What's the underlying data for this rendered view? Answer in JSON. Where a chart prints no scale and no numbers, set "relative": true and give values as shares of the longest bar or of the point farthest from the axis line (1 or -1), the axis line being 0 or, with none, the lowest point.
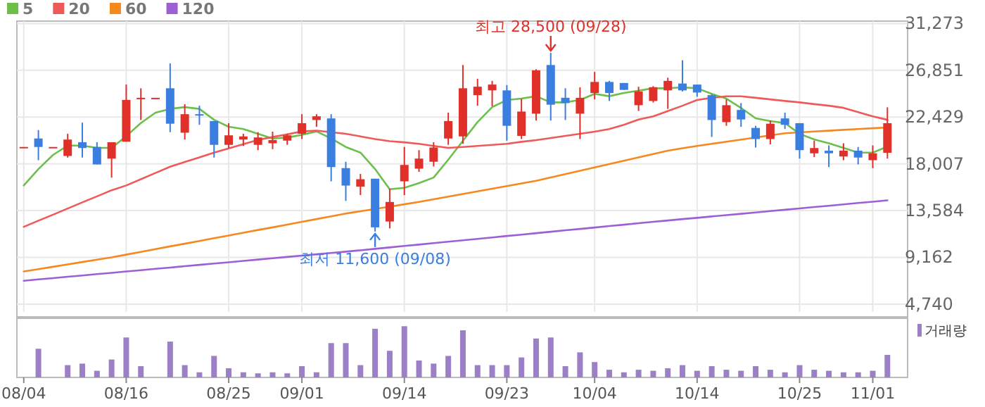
{
  "chart_data": [
    {
      "type": "candlestick",
      "categories": [
        null,
        null,
        null,
        null,
        null,
        null,
        null,
        null,
        null,
        null,
        null,
        null,
        null,
        null,
        null,
        null,
        null,
        null,
        null,
        null,
        null,
        null,
        null,
        null,
        null,
        null,
        null,
        null,
        null,
        null,
        null,
        null,
        null,
        null,
        null,
        null,
        null,
        null,
        null,
        null,
        null,
        null,
        null,
        null,
        null,
        null,
        null,
        null,
        null,
        null,
        null,
        null,
        null,
        null,
        null,
        null,
        null,
        null,
        null,
        null
      ],
      "ohlc": [
        [
          19600,
          19600,
          19600,
          19600
        ],
        [
          20400,
          21200,
          18350,
          19600
        ],
        [
          19600,
          19600,
          19600,
          19600
        ],
        [
          18750,
          20850,
          18600,
          20300
        ],
        [
          20050,
          21900,
          18600,
          19500
        ],
        [
          19600,
          20050,
          17950,
          17950
        ],
        [
          18500,
          20050,
          16700,
          20050
        ],
        [
          20100,
          25500,
          20100,
          24050
        ],
        [
          24250,
          25150,
          22150,
          24250
        ],
        [
          24250,
          24250,
          24250,
          24250
        ],
        [
          25150,
          27500,
          21000,
          21800
        ],
        [
          20950,
          23650,
          20300,
          22700
        ],
        [
          22700,
          23500,
          21700,
          22650
        ],
        [
          22050,
          22050,
          18600,
          19800
        ],
        [
          19800,
          21850,
          19500,
          20700
        ],
        [
          20300,
          20850,
          19700,
          20600
        ],
        [
          19800,
          21000,
          19300,
          20500
        ],
        [
          19950,
          21050,
          19400,
          20250
        ],
        [
          20200,
          20850,
          19800,
          20700
        ],
        [
          20850,
          22700,
          20350,
          21850
        ],
        [
          22150,
          22700,
          21500,
          22500
        ],
        [
          22300,
          22700,
          16350,
          17700
        ],
        [
          17600,
          18200,
          14500,
          15950
        ],
        [
          15850,
          17050,
          15050,
          16550
        ],
        [
          16600,
          16600,
          11600,
          12000
        ],
        [
          12550,
          15650,
          11900,
          14400
        ],
        [
          16350,
          19600,
          15050,
          17900
        ],
        [
          17550,
          19300,
          17250,
          18500
        ],
        [
          18200,
          20050,
          17750,
          19550
        ],
        [
          20400,
          22850,
          19800,
          22050
        ],
        [
          20600,
          27350,
          19900,
          25150
        ],
        [
          24500,
          26050,
          23500,
          25300
        ],
        [
          24950,
          25850,
          23450,
          25500
        ],
        [
          24950,
          25450,
          20200,
          21600
        ],
        [
          20650,
          24150,
          20350,
          22950
        ],
        [
          22750,
          26950,
          22100,
          26850
        ],
        [
          27350,
          28500,
          22100,
          23600
        ],
        [
          24250,
          25150,
          22150,
          23750
        ],
        [
          22750,
          25250,
          20350,
          24250
        ],
        [
          24700,
          26700,
          24100,
          25750
        ],
        [
          25750,
          25850,
          23950,
          24700
        ],
        [
          25650,
          25650,
          25000,
          25000
        ],
        [
          23550,
          25300,
          23000,
          24850
        ],
        [
          23950,
          25350,
          23800,
          25250
        ],
        [
          24950,
          26150,
          23200,
          25850
        ],
        [
          25600,
          27800,
          24850,
          24950
        ],
        [
          25500,
          25500,
          24350,
          24750
        ],
        [
          24500,
          24600,
          20550,
          22150
        ],
        [
          21950,
          24100,
          21600,
          23550
        ],
        [
          23100,
          23750,
          21500,
          22200
        ],
        [
          21400,
          21600,
          19550,
          20350
        ],
        [
          20350,
          22100,
          19850,
          21800
        ],
        [
          22300,
          22850,
          21300,
          21700
        ],
        [
          21850,
          21850,
          18500,
          19300
        ],
        [
          19000,
          20200,
          18650,
          19500
        ],
        [
          19250,
          19750,
          17700,
          19000
        ],
        [
          18700,
          19950,
          18350,
          19250
        ],
        [
          19250,
          19600,
          17950,
          18600
        ],
        [
          18350,
          19750,
          17600,
          19000
        ],
        [
          19050,
          23350,
          18500,
          21850
        ]
      ],
      "series": [
        {
          "name": "5",
          "type": "line",
          "color": "#6cc04a",
          "values": [
            15960,
            17510,
            18850,
            19730,
            19730,
            19510,
            19510,
            20620,
            21860,
            22840,
            23200,
            23370,
            23200,
            22170,
            21510,
            21290,
            20840,
            20400,
            20490,
            20750,
            21070,
            20400,
            19600,
            19070,
            17510,
            15600,
            15740,
            16180,
            16710,
            18400,
            20180,
            21950,
            23370,
            24040,
            24170,
            24400,
            23820,
            23820,
            24040,
            24620,
            24400,
            24710,
            24930,
            25150,
            25150,
            25240,
            25150,
            24620,
            24170,
            23290,
            22310,
            22040,
            21860,
            20840,
            20310,
            19950,
            19510,
            19070,
            19070,
            19640
          ]
        },
        {
          "name": "20",
          "type": "line",
          "color": "#ee5a5a",
          "values": [
            12050,
            12630,
            13200,
            13780,
            14360,
            14930,
            15510,
            15960,
            16550,
            17140,
            17730,
            18180,
            18620,
            19070,
            19470,
            19870,
            20270,
            20540,
            20800,
            21070,
            21150,
            21000,
            20850,
            20600,
            20350,
            20150,
            20040,
            19900,
            19700,
            19510,
            19600,
            19700,
            19800,
            19900,
            20090,
            20250,
            20450,
            20650,
            20850,
            21050,
            21290,
            21700,
            22200,
            22500,
            23000,
            23500,
            24040,
            24250,
            24390,
            24390,
            24250,
            24100,
            23950,
            23820,
            23650,
            23500,
            23300,
            22900,
            22500,
            22170
          ]
        },
        {
          "name": "60",
          "type": "line",
          "color": "#f5891f",
          "values": [
            7830,
            8050,
            8270,
            8500,
            8720,
            8940,
            9160,
            9420,
            9680,
            9940,
            10200,
            10450,
            10710,
            10970,
            11230,
            11490,
            11750,
            12000,
            12260,
            12520,
            12780,
            13040,
            13300,
            13520,
            13740,
            13960,
            14180,
            14400,
            14650,
            14900,
            15150,
            15400,
            15650,
            15900,
            16150,
            16400,
            16720,
            17030,
            17350,
            17670,
            17980,
            18300,
            18620,
            18930,
            19250,
            19480,
            19700,
            19900,
            20100,
            20300,
            20500,
            20700,
            20900,
            20980,
            21060,
            21140,
            21220,
            21300,
            21370,
            21450
          ]
        },
        {
          "name": "120",
          "type": "line",
          "color": "#9d5fd6",
          "values": [
            6950,
            7075,
            7200,
            7325,
            7450,
            7575,
            7700,
            7825,
            7950,
            8075,
            8200,
            8325,
            8450,
            8575,
            8700,
            8825,
            8950,
            9075,
            9200,
            9325,
            9450,
            9575,
            9700,
            9830,
            9970,
            10100,
            10240,
            10370,
            10510,
            10640,
            10780,
            10910,
            11040,
            11180,
            11310,
            11450,
            11580,
            11720,
            11850,
            11980,
            12120,
            12250,
            12390,
            12520,
            12650,
            12780,
            12900,
            13030,
            13160,
            13280,
            13410,
            13540,
            13660,
            13790,
            13920,
            14040,
            14170,
            14300,
            14420,
            14550
          ]
        }
      ],
      "ylim": [
        4000,
        31500
      ],
      "yticks": [
        {
          "value": 4740,
          "label": "4,740"
        },
        {
          "value": 9162,
          "label": "9,162"
        },
        {
          "value": 13584,
          "label": "13,584"
        },
        {
          "value": 18007,
          "label": "18,007"
        },
        {
          "value": 22429,
          "label": "22,429"
        },
        {
          "value": 26851,
          "label": "26,851"
        },
        {
          "value": 31273,
          "label": "31,273"
        }
      ],
      "grid": true,
      "legend": "top left",
      "tick_labels": "y",
      "annotations": [
        "최고 28,500 (09/28)",
        "최저 11,600 (09/08)"
      ]
    },
    {
      "type": "bar",
      "categories": [
        "08/04",
        null,
        null,
        null,
        null,
        null,
        null,
        "08/16",
        null,
        null,
        null,
        null,
        null,
        null,
        "08/25",
        null,
        null,
        null,
        null,
        "09/01",
        null,
        null,
        null,
        null,
        null,
        null,
        "09/14",
        null,
        null,
        null,
        null,
        null,
        null,
        "09/23",
        null,
        null,
        null,
        null,
        null,
        "10/04",
        null,
        null,
        null,
        null,
        null,
        null,
        "10/14",
        null,
        null,
        null,
        null,
        null,
        null,
        "10/25",
        null,
        null,
        null,
        null,
        "11/01",
        null
      ],
      "series": [
        {
          "name": "거래량",
          "color": "#9b7fc7",
          "values": [
            0,
            0.56,
            0,
            0.24,
            0.27,
            0.13,
            0.35,
            0.78,
            0.22,
            0,
            0.7,
            0.24,
            0.1,
            0.42,
            0.18,
            0.1,
            0.08,
            0.1,
            0.08,
            0.22,
            0.1,
            0.67,
            0.67,
            0.24,
            0.95,
            0.52,
            1,
            0.33,
            0.27,
            0.42,
            0.92,
            0.24,
            0.24,
            0.24,
            0.39,
            0.76,
            0.78,
            0.22,
            0.49,
            0.3,
            0.15,
            0.1,
            0.15,
            0.13,
            0.18,
            0.24,
            0.13,
            0.22,
            0.15,
            0.13,
            0.22,
            0.15,
            0.1,
            0.24,
            0.15,
            0.13,
            0.1,
            0.1,
            0.13,
            0.44
          ]
        }
      ],
      "relative": true,
      "legend": "top right",
      "tick_labels": "x"
    }
  ]
}
